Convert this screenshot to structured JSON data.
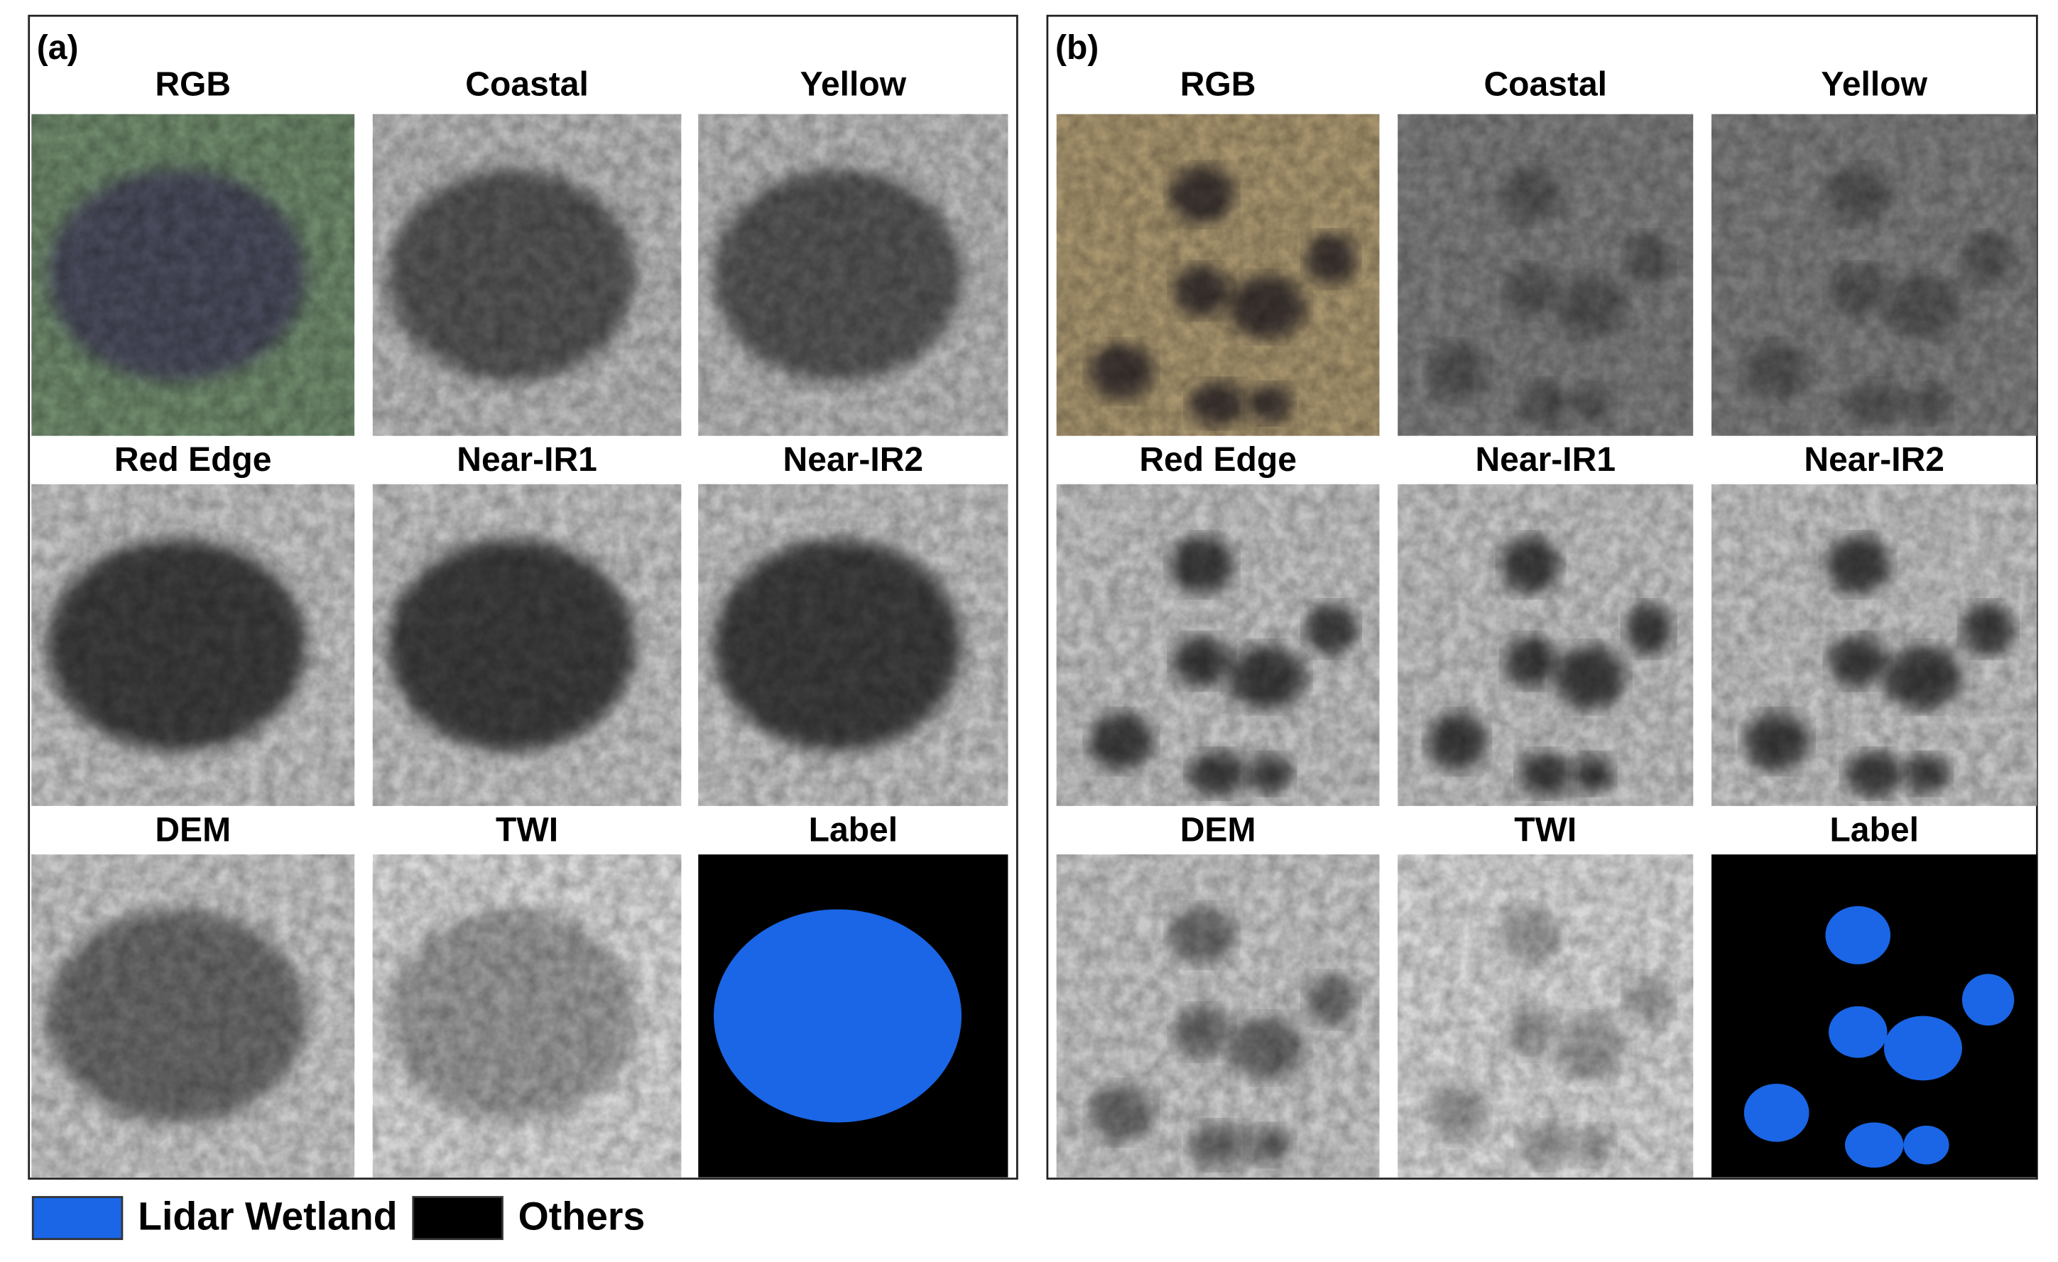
{
  "panels": [
    {
      "label": "(a)",
      "tiles": [
        {
          "title": "RGB"
        },
        {
          "title": "Coastal"
        },
        {
          "title": "Yellow"
        },
        {
          "title": "Red Edge"
        },
        {
          "title": "Near-IR1"
        },
        {
          "title": "Near-IR2"
        },
        {
          "title": "DEM"
        },
        {
          "title": "TWI"
        },
        {
          "title": "Label"
        }
      ]
    },
    {
      "label": "(b)",
      "tiles": [
        {
          "title": "RGB"
        },
        {
          "title": "Coastal"
        },
        {
          "title": "Yellow"
        },
        {
          "title": "Red Edge"
        },
        {
          "title": "Near-IR1"
        },
        {
          "title": "Near-IR2"
        },
        {
          "title": "DEM"
        },
        {
          "title": "TWI"
        },
        {
          "title": "Label"
        }
      ]
    }
  ],
  "legend": [
    {
      "label": "Lidar Wetland",
      "color": "#1a66e6"
    },
    {
      "label": "Others",
      "color": "#000000"
    }
  ]
}
